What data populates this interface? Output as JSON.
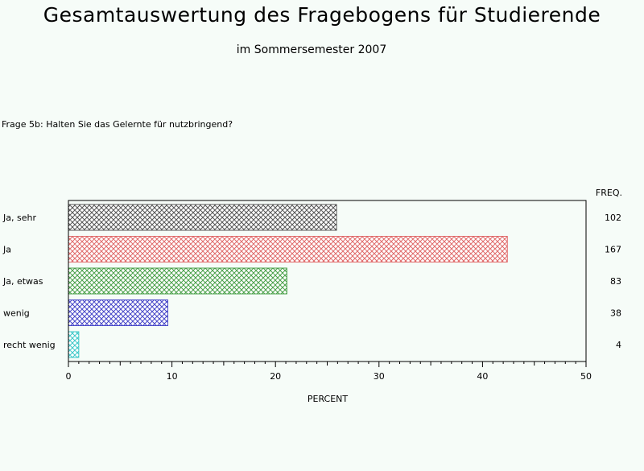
{
  "header": {
    "title": "Gesamtauswertung des Fragebogens für Studierende",
    "subtitle": "im Sommersemester 2007"
  },
  "question": "Frage 5b: Halten Sie das Gelernte für nutzbringend?",
  "chart_data": {
    "type": "bar",
    "orientation": "horizontal",
    "categories": [
      "Ja, sehr",
      "Ja",
      "Ja, etwas",
      "wenig",
      "recht wenig"
    ],
    "values": [
      25.9,
      42.4,
      21.1,
      9.6,
      1.0
    ],
    "freq": [
      102,
      167,
      83,
      38,
      4
    ],
    "freq_label": "FREQ.",
    "colors": [
      "#555555",
      "#e06a6a",
      "#48a048",
      "#4646c8",
      "#3ec8c8"
    ],
    "xlabel": "PERCENT",
    "xlim": [
      0,
      50
    ],
    "xticks": [
      0,
      10,
      20,
      30,
      40,
      50
    ],
    "pattern": "crosshatch",
    "grid": false,
    "legend": "none"
  }
}
